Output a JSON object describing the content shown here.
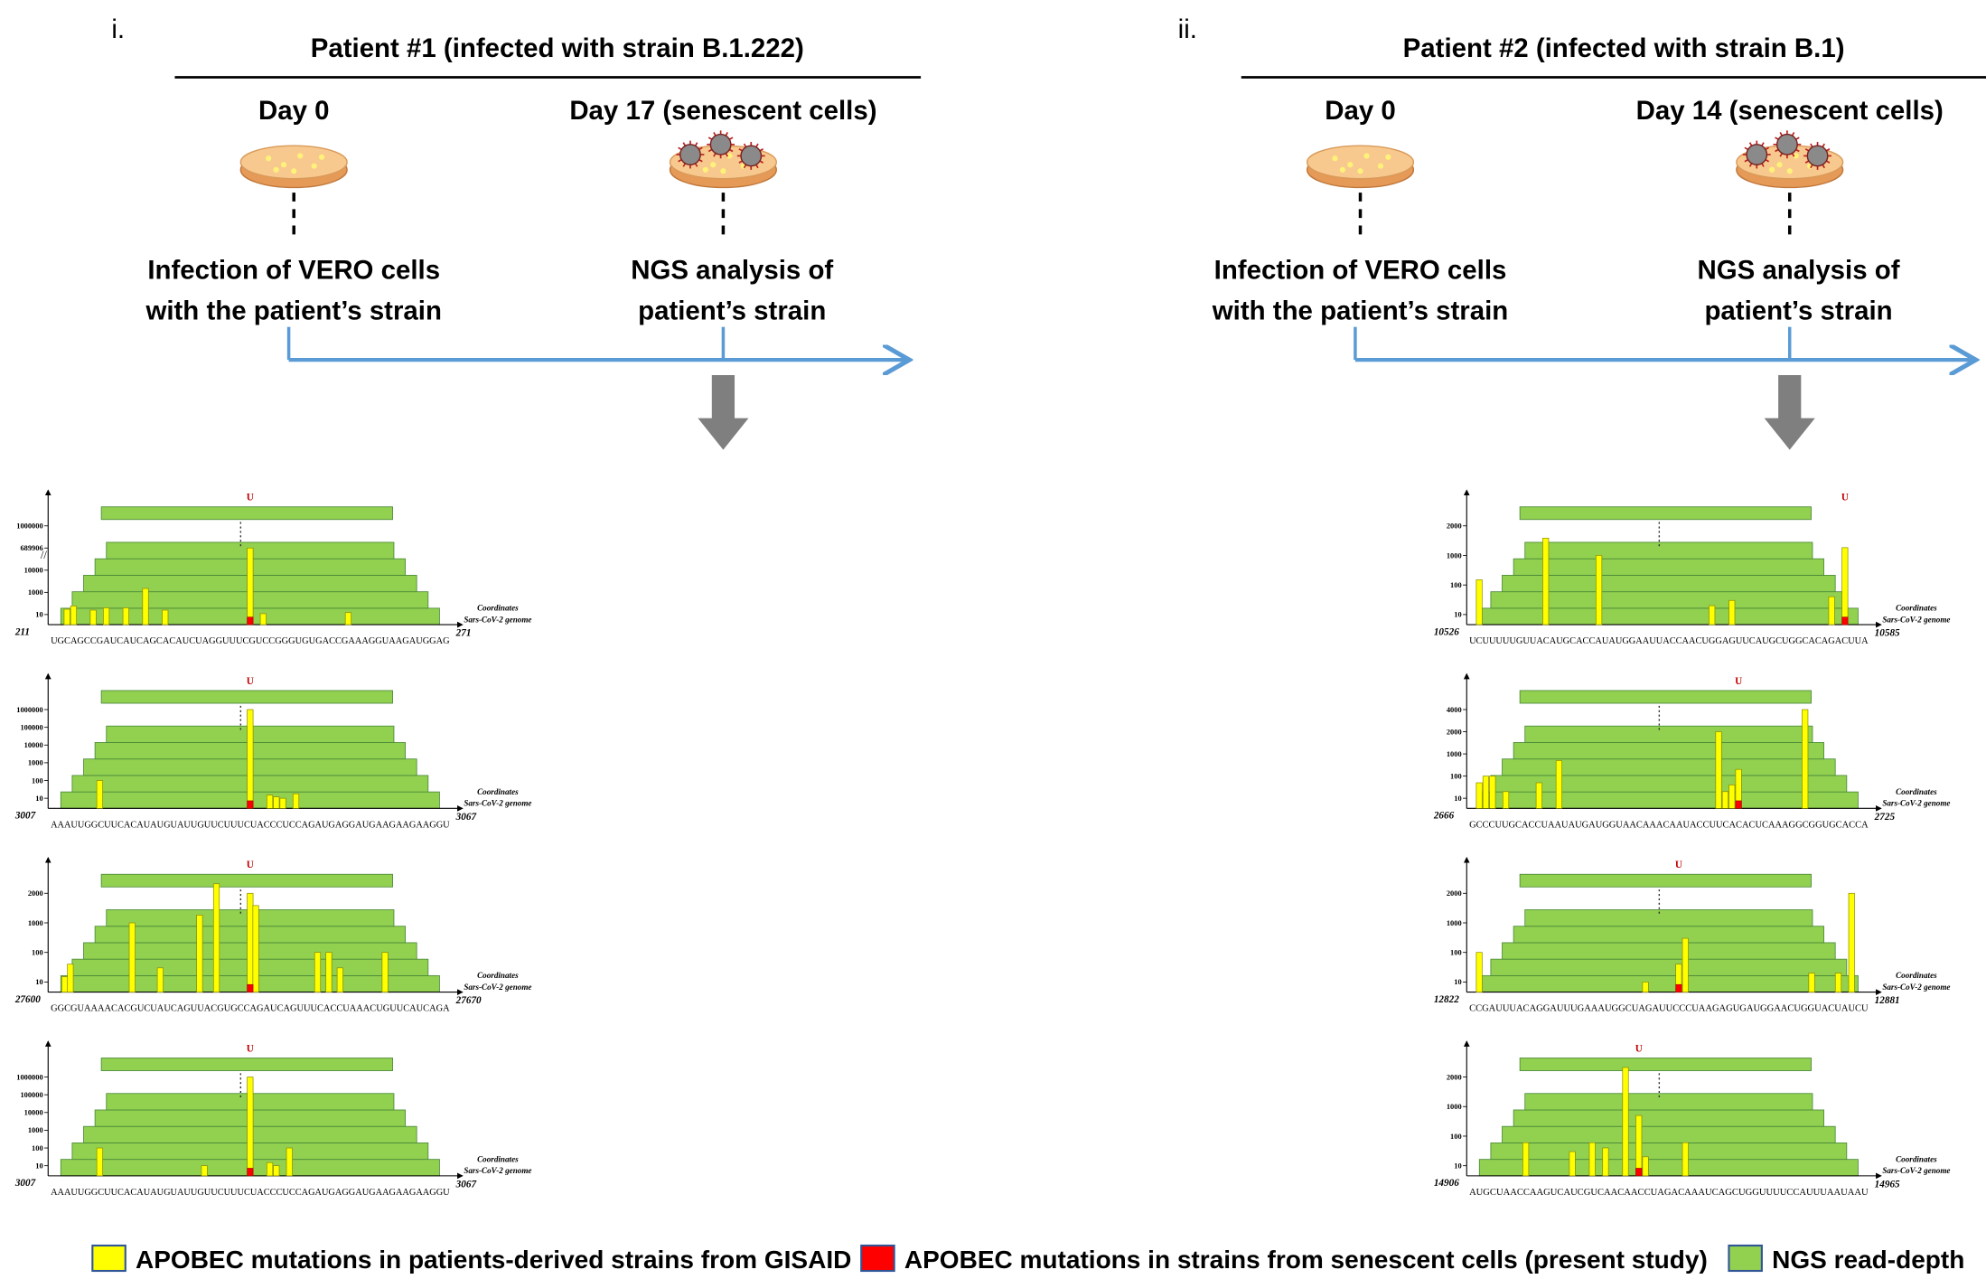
{
  "panels": [
    {
      "label": "i.",
      "title": "Patient #1 (infected with strain B.1.222)",
      "steps": [
        {
          "day": "Day 0",
          "text": [
            "Infection of VERO cells",
            "with the patient’s strain"
          ]
        },
        {
          "day": "Day 17 (senescent cells)",
          "text": [
            "NGS analysis of",
            "patient’s strain"
          ]
        }
      ],
      "charts": [
        {
          "start": 211,
          "end": 271,
          "sequence": "UGCAGCCGAUCAUCAGCACAUCUAGGUUUCGUCCGGGUGUGACCGAAAGGUAAGAUGGAG",
          "yticks": [
            10,
            1000,
            10000,
            689906,
            1000000
          ],
          "positions": [
            213,
            214,
            217,
            219,
            222,
            225,
            228,
            241,
            243,
            256
          ],
          "depths": [
            30,
            60,
            25,
            40,
            40,
            1500,
            25,
            689906,
            12,
            15
          ],
          "senescent_position": 241
        },
        {
          "start": 3007,
          "end": 3067,
          "sequence": "AAAUUGGCUUCACAUAUGUAUUGUUCUUUCUACCCUCCAGAUGAGGAUGAAGAAGAAGGU",
          "yticks": [
            10,
            100,
            1000,
            10000,
            100000,
            1000000
          ],
          "positions": [
            3014,
            3037,
            3040,
            3041,
            3042,
            3044
          ],
          "depths": [
            100,
            1000000,
            15,
            12,
            10,
            18
          ],
          "senescent_position": 3037
        },
        {
          "start": 27600,
          "end": 27670,
          "sequence": "GGCGUAAAACACGUCUAUCAGUUACGUGCCAGAUCAGUUUCACCUAAACUGUUCAUCAGA",
          "yticks": [
            10,
            100,
            1000,
            2000
          ],
          "positions": [
            27602,
            27603,
            27614,
            27619,
            27626,
            27629,
            27635,
            27636,
            27647,
            27649,
            27651,
            27659
          ],
          "depths": [
            15,
            40,
            1000,
            30,
            1200,
            2500,
            2000,
            1500,
            100,
            100,
            30,
            100
          ],
          "senescent_position": 27635
        },
        {
          "start": 3007,
          "end": 3067,
          "sequence": "AAAUUGGCUUCACAUAUGUAUUGUUCUUUCUACCCUCCAGAUGAGGAUGAAGAAGAAGGU",
          "yticks": [
            10,
            100,
            1000,
            10000,
            100000,
            1000000
          ],
          "positions": [
            3014,
            3030,
            3037,
            3040,
            3041,
            3043
          ],
          "depths": [
            100,
            10,
            1000000,
            15,
            10,
            100
          ],
          "senescent_position": 3037
        }
      ]
    },
    {
      "label": "ii.",
      "title": "Patient #2 (infected with strain B.1)",
      "steps": [
        {
          "day": "Day 0",
          "text": [
            "Infection of VERO cells",
            "with the patient’s strain"
          ]
        },
        {
          "day": "Day 14 (senescent cells)",
          "text": [
            "NGS analysis of",
            "patient’s strain"
          ]
        }
      ],
      "charts": [
        {
          "start": 10526,
          "end": 10585,
          "sequence": "UCUUUUUGUUACAUGCACCAUAUGGAAUUACCAACUGGAGUUCAUGCUGGCACAGACUUA",
          "yticks": [
            10,
            100,
            1000,
            2000
          ],
          "positions": [
            10527,
            10537,
            10545,
            10562,
            10565,
            10580,
            10582
          ],
          "depths": [
            150,
            1500,
            1000,
            20,
            30,
            40,
            1200
          ],
          "senescent_position": 10582
        },
        {
          "start": 2666,
          "end": 2725,
          "sequence": "GCCCUUGCACCUAAUAUGAUGGUAACAAACAAUACCUUCACACUCAAAGGCGGUGCACCA",
          "yticks": [
            10,
            100,
            1000,
            2000,
            4000
          ],
          "positions": [
            2667,
            2668,
            2669,
            2671,
            2676,
            2679,
            2703,
            2704,
            2705,
            2706,
            2716
          ],
          "depths": [
            50,
            100,
            100,
            20,
            50,
            500,
            2000,
            20,
            40,
            200,
            4000
          ],
          "senescent_position": 2706
        },
        {
          "start": 12822,
          "end": 12881,
          "sequence": "CCGAUUUACAGGAUUUGAAAUGGCUAGAUUCCCUAAGAGUGAUGGAACUGGUACUAUCU",
          "yticks": [
            10,
            100,
            1000,
            2000
          ],
          "positions": [
            12823,
            12848,
            12853,
            12854,
            12873,
            12877,
            12879
          ],
          "depths": [
            100,
            10,
            40,
            300,
            20,
            20,
            2000
          ],
          "senescent_position": 12853
        },
        {
          "start": 14906,
          "end": 14965,
          "sequence": "AUGCUAACCAAGUCAUCGUCAACAACCUAGACAAAUCAGCUGGUUUUCCAUUUAAUAAU",
          "yticks": [
            10,
            100,
            1000,
            2000
          ],
          "positions": [
            14914,
            14921,
            14924,
            14926,
            14929,
            14931,
            14932,
            14938
          ],
          "depths": [
            60,
            30,
            60,
            40,
            2500,
            500,
            20,
            60
          ],
          "senescent_position": 14931
        }
      ]
    }
  ],
  "mutation_label": "U",
  "coord_label": "Coordinates",
  "genome_label": "Sars-CoV-2 genome",
  "legend": [
    {
      "name": "APOBEC mutations in patients-derived strains from GISAID",
      "color": "#ffff00"
    },
    {
      "name": "APOBEC mutations in strains from senescent cells (present study)",
      "color": "#ff0000"
    },
    {
      "name": "NGS read-depth",
      "color": "#92d050"
    }
  ]
}
